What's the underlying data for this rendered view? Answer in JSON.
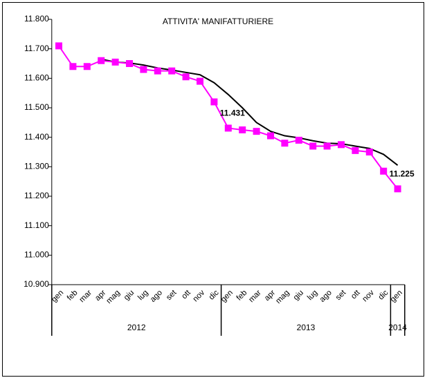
{
  "chart_data": {
    "type": "line",
    "title": "ATTIVITA' MANIFATTURIERE",
    "categories": [
      "gen",
      "feb",
      "mar",
      "apr",
      "mag",
      "giu",
      "lug",
      "ago",
      "set",
      "ott",
      "nov",
      "dic",
      "gen",
      "feb",
      "mar",
      "apr",
      "mag",
      "giu",
      "lug",
      "ago",
      "set",
      "ott",
      "nov",
      "dic",
      "gen"
    ],
    "year_groups": [
      {
        "label": "2012",
        "count": 12
      },
      {
        "label": "2013",
        "count": 12
      },
      {
        "label": "2014",
        "count": 1
      }
    ],
    "series": [
      {
        "color": "#ff00ff",
        "marker": "square",
        "values": [
          11710,
          11640,
          11640,
          11660,
          11655,
          11650,
          11630,
          11625,
          11625,
          11605,
          11590,
          11520,
          11431,
          11425,
          11420,
          11405,
          11380,
          11390,
          11370,
          11370,
          11375,
          11355,
          11350,
          11285,
          11225
        ],
        "value_labels": [
          null,
          null,
          null,
          null,
          null,
          null,
          null,
          null,
          null,
          null,
          null,
          null,
          "11.431",
          null,
          null,
          null,
          null,
          null,
          null,
          null,
          null,
          null,
          null,
          null,
          "11.225"
        ]
      },
      {
        "color": "#000000",
        "marker": "none",
        "values": [
          null,
          null,
          null,
          11665,
          11655,
          11652,
          11645,
          11635,
          11628,
          11620,
          11612,
          11585,
          11545,
          11500,
          11450,
          11420,
          11405,
          11398,
          11388,
          11380,
          11378,
          11370,
          11362,
          11342,
          11305
        ]
      }
    ],
    "ylim": [
      10900,
      11800
    ],
    "yticks": [
      {
        "value": 10900,
        "label": "10.900"
      },
      {
        "value": 11000,
        "label": "11.000"
      },
      {
        "value": 11100,
        "label": "11.100"
      },
      {
        "value": 11200,
        "label": "11.200"
      },
      {
        "value": 11300,
        "label": "11.300"
      },
      {
        "value": 11400,
        "label": "11.400"
      },
      {
        "value": 11500,
        "label": "11.500"
      },
      {
        "value": 11600,
        "label": "11.600"
      },
      {
        "value": 11700,
        "label": "11.700"
      },
      {
        "value": 11800,
        "label": "11.800"
      }
    ],
    "grid": false
  }
}
